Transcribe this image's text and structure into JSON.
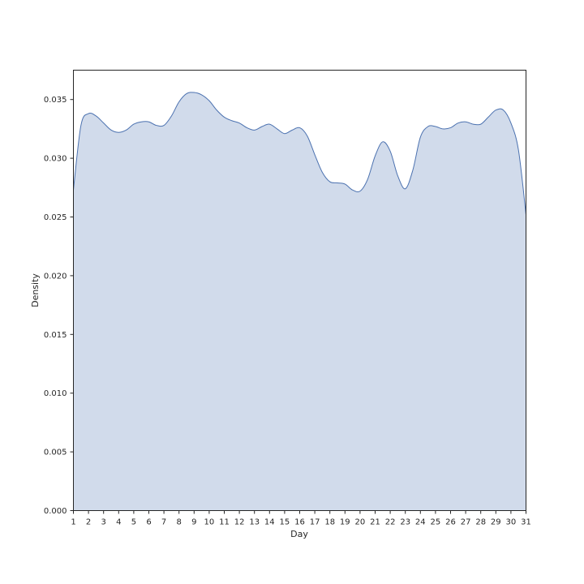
{
  "chart_data": {
    "type": "area",
    "title": "",
    "xlabel": "Day",
    "ylabel": "Density",
    "xlim": [
      1,
      31
    ],
    "ylim": [
      0,
      0.0375
    ],
    "x_ticks": [
      "1",
      "2",
      "3",
      "4",
      "5",
      "6",
      "7",
      "8",
      "9",
      "10",
      "11",
      "12",
      "13",
      "14",
      "15",
      "16",
      "17",
      "18",
      "19",
      "20",
      "21",
      "22",
      "23",
      "24",
      "25",
      "26",
      "27",
      "28",
      "29",
      "30",
      "31"
    ],
    "y_ticks": [
      "0.000",
      "0.005",
      "0.010",
      "0.015",
      "0.020",
      "0.025",
      "0.030",
      "0.035"
    ],
    "grid": false,
    "colors": {
      "line": "#4c72b0",
      "fill": "#d1dbeb",
      "axes": "#262626"
    },
    "series": [
      {
        "x": [
          1.0,
          1.5,
          2.0,
          2.5,
          3.0,
          3.5,
          4.0,
          4.5,
          5.0,
          5.5,
          6.0,
          6.5,
          7.0,
          7.5,
          8.0,
          8.5,
          9.0,
          9.5,
          10.0,
          10.5,
          11.0,
          11.5,
          12.0,
          12.5,
          13.0,
          13.5,
          14.0,
          14.5,
          15.0,
          15.5,
          16.0,
          16.5,
          17.0,
          17.5,
          18.0,
          18.5,
          19.0,
          19.5,
          20.0,
          20.5,
          21.0,
          21.5,
          22.0,
          22.5,
          23.0,
          23.5,
          24.0,
          24.5,
          25.0,
          25.5,
          26.0,
          26.5,
          27.0,
          27.5,
          28.0,
          28.5,
          29.0,
          29.5,
          30.0,
          30.5,
          31.0
        ],
        "y": [
          0.0273,
          0.0328,
          0.0338,
          0.0336,
          0.033,
          0.0324,
          0.0322,
          0.0324,
          0.0329,
          0.0331,
          0.0331,
          0.0328,
          0.0328,
          0.0336,
          0.0348,
          0.0355,
          0.0356,
          0.0354,
          0.0349,
          0.0341,
          0.0335,
          0.0332,
          0.033,
          0.0326,
          0.0324,
          0.0327,
          0.0329,
          0.0325,
          0.0321,
          0.0324,
          0.0326,
          0.0319,
          0.0303,
          0.0288,
          0.028,
          0.0279,
          0.0278,
          0.0273,
          0.0272,
          0.0282,
          0.0302,
          0.0314,
          0.0306,
          0.0285,
          0.0274,
          0.029,
          0.0318,
          0.0327,
          0.0327,
          0.0325,
          0.0326,
          0.033,
          0.0331,
          0.0329,
          0.0329,
          0.0335,
          0.0341,
          0.0341,
          0.033,
          0.0307,
          0.0252
        ]
      }
    ]
  }
}
